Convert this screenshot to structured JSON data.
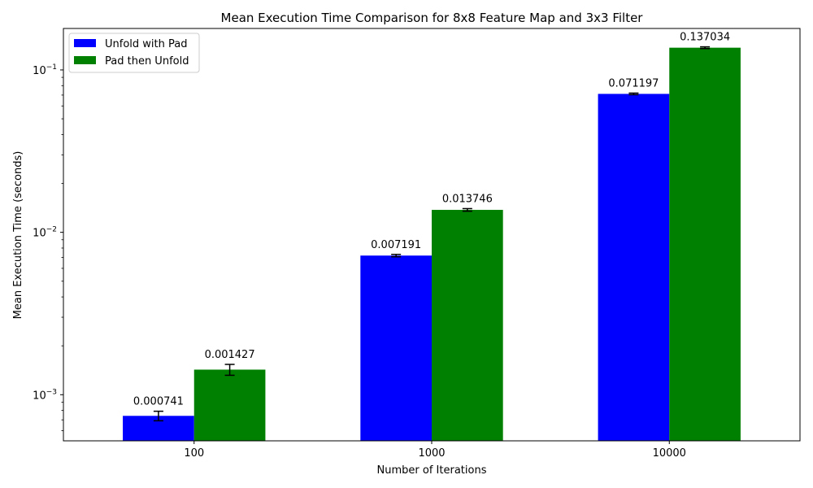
{
  "chart_data": {
    "type": "bar",
    "title": "Mean Execution Time Comparison for 8x8 Feature Map and 3x3 Filter",
    "xlabel": "Number of Iterations",
    "ylabel": "Mean Execution Time (seconds)",
    "yscale": "log",
    "ylim": [
      0.00052,
      0.18
    ],
    "categories": [
      "100",
      "1000",
      "10000"
    ],
    "series": [
      {
        "name": "Unfold with Pad",
        "color": "#0000ff",
        "values": [
          0.000741,
          0.007191,
          0.071197
        ],
        "labels": [
          "0.000741",
          "0.007191",
          "0.071197"
        ],
        "errors": [
          5e-05,
          0.00012,
          0.0008
        ]
      },
      {
        "name": "Pad then Unfold",
        "color": "#008000",
        "values": [
          0.001427,
          0.013746,
          0.137034
        ],
        "labels": [
          "0.001427",
          "0.013746",
          "0.137034"
        ],
        "errors": [
          0.00011,
          0.00025,
          0.0017
        ]
      }
    ],
    "y_ticks": [
      {
        "value": 0.001,
        "base": "10",
        "exp": "−3"
      },
      {
        "value": 0.01,
        "base": "10",
        "exp": "−2"
      },
      {
        "value": 0.1,
        "base": "10",
        "exp": "−1"
      }
    ],
    "legend_position": "top-left",
    "grid": false
  }
}
